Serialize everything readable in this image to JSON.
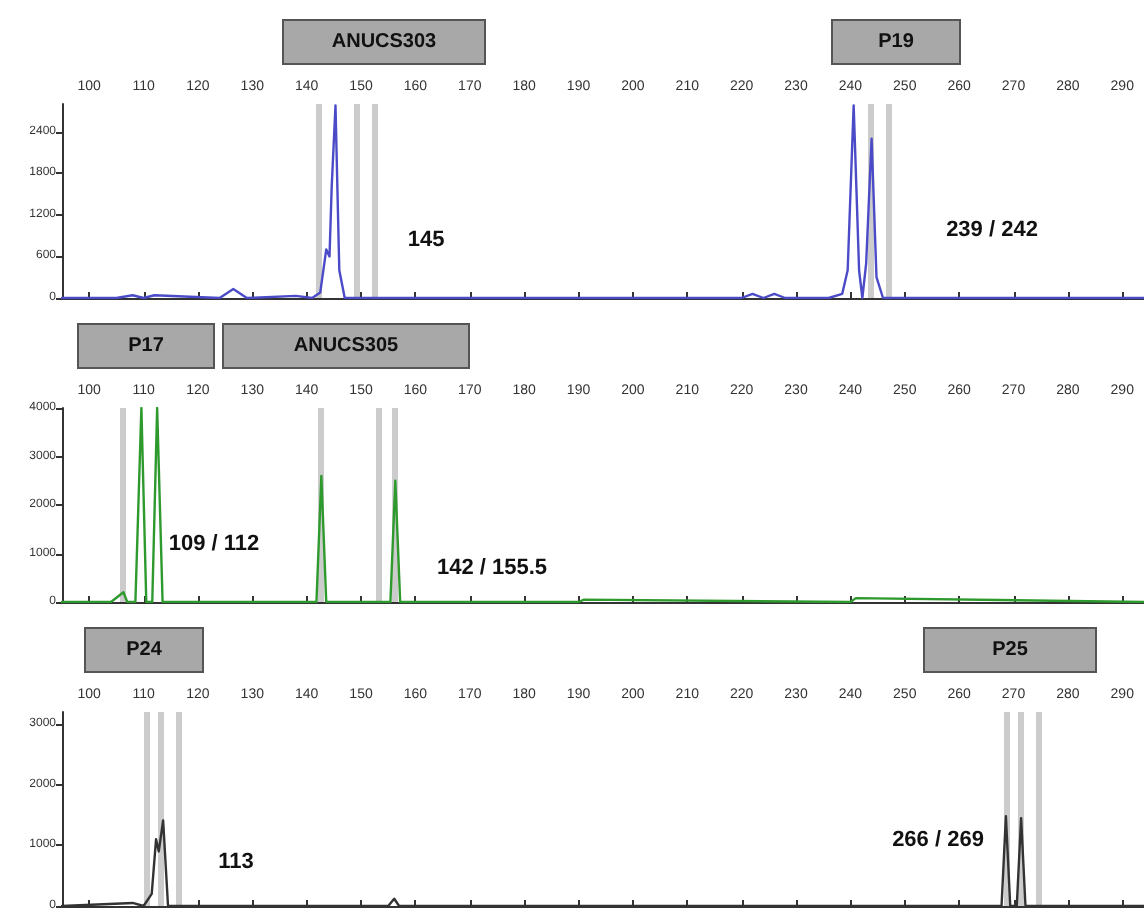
{
  "chart_data": [
    {
      "type": "line",
      "x": [
        95,
        105,
        108,
        110,
        112,
        124,
        126.5,
        129,
        138,
        141,
        142.5,
        143.6,
        144.2,
        144.6,
        145.3,
        146,
        147,
        160,
        220,
        222,
        224,
        226,
        228,
        236,
        238.5,
        239.5,
        240.6,
        241.6,
        242.2,
        242.9,
        243.9,
        244.8,
        246,
        294
      ],
      "series": [
        {
          "color": "#4b4bc8",
          "values": [
            0,
            0,
            40,
            0,
            40,
            0,
            130,
            0,
            30,
            0,
            80,
            700,
            600,
            1600,
            2780,
            400,
            0,
            0,
            0,
            60,
            0,
            60,
            0,
            0,
            60,
            400,
            2780,
            400,
            0,
            500,
            2300,
            300,
            0,
            0
          ]
        }
      ],
      "xlim": [
        95,
        294
      ],
      "xticks": [
        100,
        110,
        120,
        130,
        140,
        150,
        160,
        170,
        180,
        190,
        200,
        210,
        220,
        230,
        240,
        250,
        260,
        270,
        280,
        290
      ],
      "ylim": [
        0,
        2800
      ],
      "yticks": [
        0,
        600,
        1200,
        1800,
        2400
      ],
      "grid": false,
      "marker": "none",
      "line_style": "solid",
      "ref_lines": [
        {
          "axis": "x",
          "value": 142.3,
          "color": "#cccccc"
        },
        {
          "axis": "x",
          "value": 149.2,
          "color": "#cccccc"
        },
        {
          "axis": "x",
          "value": 152.4,
          "color": "#cccccc"
        },
        {
          "axis": "x",
          "value": 243.8,
          "color": "#cccccc"
        },
        {
          "axis": "x",
          "value": 246.9,
          "color": "#cccccc"
        }
      ],
      "annotations": [
        "ANUCS303",
        "P19",
        "145",
        "239 / 242"
      ]
    },
    {
      "type": "line",
      "x": [
        95,
        104,
        106.3,
        107,
        108.5,
        109.6,
        110.5,
        111.6,
        112.5,
        113.5,
        120,
        140,
        141.8,
        142.7,
        143.6,
        150,
        155.4,
        156.3,
        157.2,
        190,
        191,
        240,
        241,
        294
      ],
      "series": [
        {
          "color": "#2e9a2e",
          "values": [
            0,
            0,
            200,
            0,
            0,
            4000,
            0,
            0,
            4000,
            0,
            0,
            0,
            0,
            2600,
            0,
            0,
            0,
            2500,
            0,
            0,
            50,
            0,
            80,
            0
          ]
        }
      ],
      "xlim": [
        95,
        294
      ],
      "xticks": [
        100,
        110,
        120,
        130,
        140,
        150,
        160,
        170,
        180,
        190,
        200,
        210,
        220,
        230,
        240,
        250,
        260,
        270,
        280,
        290
      ],
      "ylim": [
        0,
        4000
      ],
      "yticks": [
        0,
        1000,
        2000,
        3000,
        4000
      ],
      "grid": false,
      "marker": "none",
      "line_style": "solid",
      "ref_lines": [
        {
          "axis": "x",
          "value": 106.3,
          "color": "#cccccc"
        },
        {
          "axis": "x",
          "value": 142.7,
          "color": "#cccccc"
        },
        {
          "axis": "x",
          "value": 153.2,
          "color": "#cccccc"
        },
        {
          "axis": "x",
          "value": 156.3,
          "color": "#cccccc"
        }
      ],
      "annotations": [
        "P17",
        "ANUCS305",
        "109 / 112",
        "142 / 155.5"
      ]
    },
    {
      "type": "line",
      "x": [
        95,
        108,
        110,
        111.5,
        112.3,
        112.8,
        113.6,
        114.5,
        116,
        155,
        156.1,
        157,
        266,
        267.8,
        268.6,
        269.4,
        270.6,
        271.4,
        272.2,
        294
      ],
      "series": [
        {
          "color": "#333333",
          "values": [
            0,
            50,
            0,
            200,
            1100,
            900,
            1410,
            0,
            0,
            0,
            120,
            0,
            0,
            0,
            1480,
            0,
            0,
            1450,
            0,
            0
          ]
        }
      ],
      "xlim": [
        95,
        294
      ],
      "xticks": [
        100,
        110,
        120,
        130,
        140,
        150,
        160,
        170,
        180,
        190,
        200,
        210,
        220,
        230,
        240,
        250,
        260,
        270,
        280,
        290
      ],
      "ylim": [
        0,
        3200
      ],
      "yticks": [
        0,
        1000,
        2000,
        3000
      ],
      "grid": false,
      "marker": "none",
      "line_style": "solid",
      "ref_lines": [
        {
          "axis": "x",
          "value": 110.5,
          "color": "#cccccc"
        },
        {
          "axis": "x",
          "value": 113.2,
          "color": "#cccccc"
        },
        {
          "axis": "x",
          "value": 116.5,
          "color": "#cccccc"
        },
        {
          "axis": "x",
          "value": 268.6,
          "color": "#cccccc"
        },
        {
          "axis": "x",
          "value": 271.4,
          "color": "#cccccc"
        },
        {
          "axis": "x",
          "value": 274.6,
          "color": "#cccccc"
        }
      ],
      "annotations": [
        "P24",
        "P25",
        "113",
        "266 / 269"
      ]
    }
  ]
}
